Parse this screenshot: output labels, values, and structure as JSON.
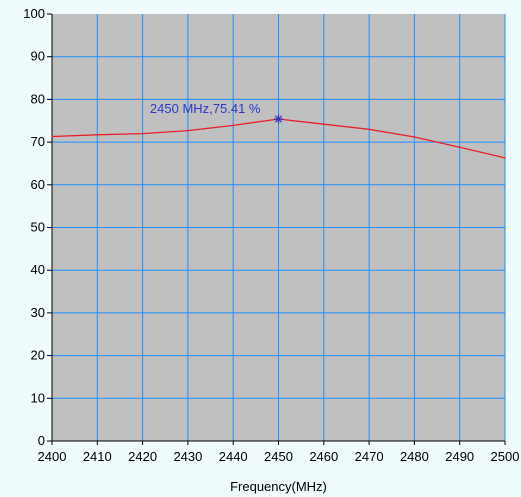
{
  "chart_data": {
    "type": "line",
    "title": "",
    "xlabel": "Frequency(MHz)",
    "ylabel": "",
    "xlim": [
      2400,
      2500
    ],
    "ylim": [
      0,
      100
    ],
    "x_ticks": [
      2400,
      2410,
      2420,
      2430,
      2440,
      2450,
      2460,
      2470,
      2480,
      2490,
      2500
    ],
    "y_ticks": [
      0,
      10,
      20,
      30,
      40,
      50,
      60,
      70,
      80,
      90,
      100
    ],
    "grid": true,
    "series": [
      {
        "x": [
          2400,
          2410,
          2420,
          2430,
          2440,
          2450,
          2460,
          2470,
          2480,
          2490,
          2500
        ],
        "y": [
          71.3,
          71.7,
          72.0,
          72.7,
          73.9,
          75.41,
          74.2,
          73.0,
          71.2,
          68.8,
          66.3
        ],
        "color": "#e8202a"
      }
    ],
    "marker": {
      "x": 2450,
      "y": 75.41,
      "label": "2450 MHz,75.41 %",
      "color": "#2b36c9"
    },
    "colors": {
      "plot_background": "#c0c0c0",
      "grid": "#1e90ff",
      "page_background": "#f0fbfd"
    }
  }
}
